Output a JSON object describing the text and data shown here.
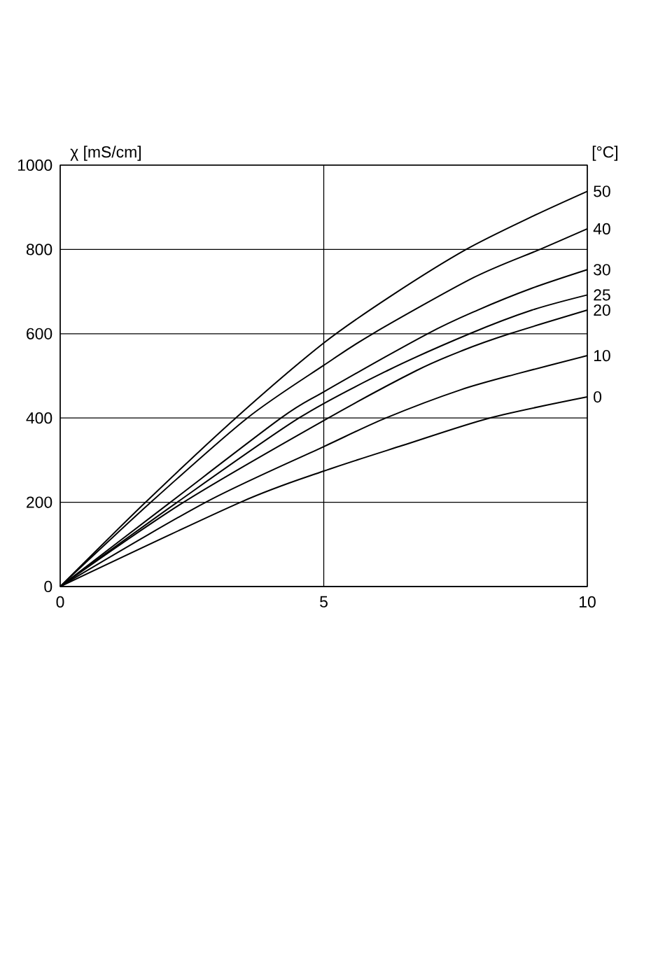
{
  "chart_data": {
    "type": "line",
    "ylabel": "χ [mS/cm]",
    "legend_title": "[°C]",
    "xlim": [
      0,
      10
    ],
    "ylim": [
      0,
      1000
    ],
    "xticks": [
      0,
      5,
      10
    ],
    "yticks": [
      0,
      200,
      400,
      600,
      800,
      1000
    ],
    "grid": true,
    "series": [
      {
        "name": "50",
        "color": "#000000",
        "x": [
          0,
          1.62,
          3.33,
          5,
          6.28,
          7.7,
          8.95,
          10
        ],
        "values": [
          0,
          200,
          400,
          578,
          690,
          800,
          878,
          938
        ]
      },
      {
        "name": "40",
        "color": "#000000",
        "x": [
          0,
          1.72,
          3.55,
          5,
          5.93,
          7.84,
          9.1,
          10
        ],
        "values": [
          0,
          200,
          400,
          525,
          600,
          733,
          800,
          849
        ]
      },
      {
        "name": "30",
        "color": "#000000",
        "x": [
          0,
          2.09,
          4.19,
          5,
          6.97,
          7.92,
          8.95,
          10
        ],
        "values": [
          0,
          200,
          400,
          462,
          600,
          656,
          708,
          752
        ]
      },
      {
        "name": "25",
        "color": "#000000",
        "x": [
          0,
          2.22,
          4.53,
          6.2,
          7.77,
          8.95,
          10
        ],
        "values": [
          0,
          200,
          400,
          512,
          600,
          656,
          692
        ]
      },
      {
        "name": "20",
        "color": "#000000",
        "x": [
          0,
          2.34,
          5,
          6.75,
          7.65,
          8.53,
          10
        ],
        "values": [
          0,
          200,
          394,
          512,
          561,
          600,
          656
        ]
      },
      {
        "name": "10",
        "color": "#000000",
        "x": [
          0,
          2.76,
          5,
          6.18,
          7.6,
          8.7,
          10
        ],
        "values": [
          0,
          200,
          332,
          400,
          467,
          506,
          548
        ]
      },
      {
        "name": "0",
        "color": "#000000",
        "x": [
          0,
          3.42,
          5,
          6.5,
          8.15,
          10
        ],
        "values": [
          0,
          200,
          274,
          335,
          400,
          450
        ]
      }
    ]
  }
}
